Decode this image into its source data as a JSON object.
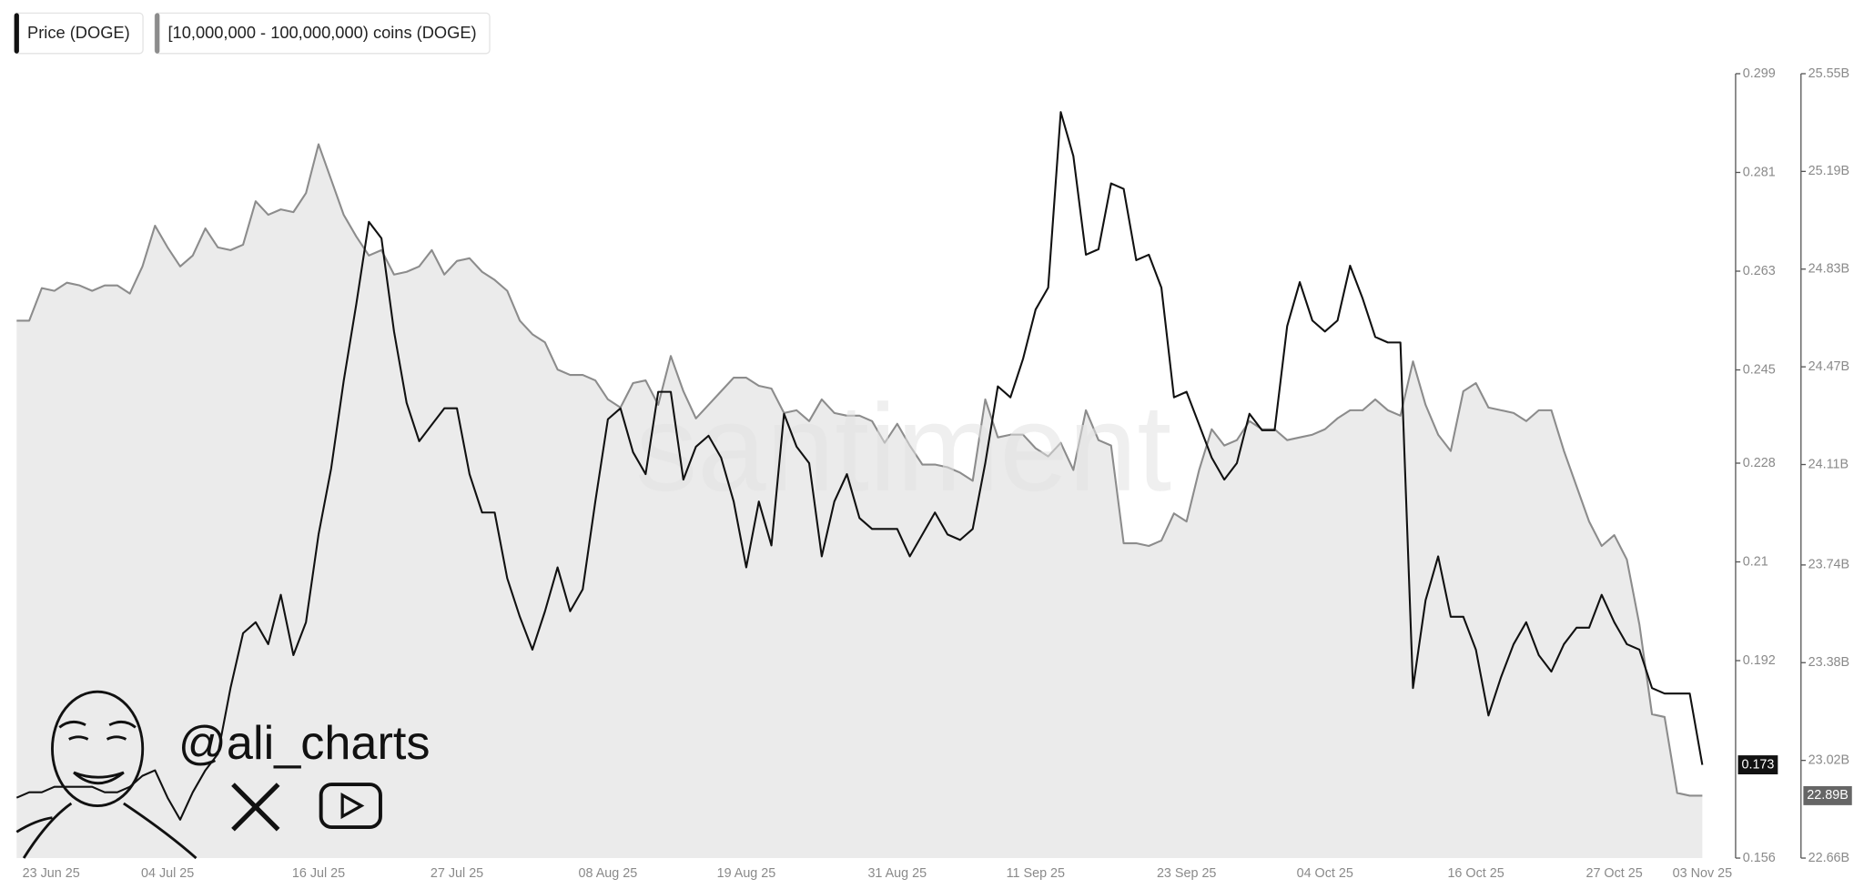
{
  "chart_data": {
    "type": "line",
    "watermark": "santiment",
    "credit": "@ali_charts",
    "categories": [
      null,
      "23 Jun 25",
      null,
      null,
      null,
      null,
      null,
      null,
      null,
      null,
      null,
      null,
      "04 Jul 25",
      null,
      null,
      null,
      null,
      null,
      null,
      null,
      null,
      null,
      null,
      null,
      "16 Jul 25",
      null,
      null,
      null,
      null,
      null,
      null,
      null,
      null,
      null,
      null,
      "27 Jul 25",
      null,
      null,
      null,
      null,
      null,
      null,
      null,
      null,
      null,
      null,
      null,
      "08 Aug 25",
      null,
      null,
      null,
      null,
      null,
      null,
      null,
      null,
      null,
      null,
      "19 Aug 25",
      null,
      null,
      null,
      null,
      null,
      null,
      null,
      null,
      null,
      null,
      null,
      "31 Aug 25",
      null,
      null,
      null,
      null,
      null,
      null,
      null,
      null,
      null,
      null,
      "11 Sep 25",
      null,
      null,
      null,
      null,
      null,
      null,
      null,
      null,
      null,
      null,
      null,
      "23 Sep 25",
      null,
      null,
      null,
      null,
      null,
      null,
      null,
      null,
      null,
      null,
      "04 Oct 25",
      null,
      null,
      null,
      null,
      null,
      null,
      null,
      null,
      null,
      null,
      null,
      "16 Oct 25",
      null,
      null,
      null,
      null,
      null,
      null,
      null,
      null,
      null,
      null,
      "27 Oct 25",
      null,
      null,
      null,
      null,
      null,
      null,
      "03 Nov 25"
    ],
    "series": [
      {
        "name": "Price (DOGE)",
        "color": "#111111",
        "axis": "y",
        "end_label": "0.173",
        "values": [
          0.167,
          0.168,
          0.168,
          0.169,
          0.169,
          0.169,
          0.169,
          0.168,
          0.168,
          0.169,
          0.171,
          0.172,
          0.167,
          0.163,
          0.168,
          0.172,
          0.175,
          0.187,
          0.197,
          0.199,
          0.195,
          0.204,
          0.193,
          0.199,
          0.215,
          0.227,
          0.243,
          0.257,
          0.272,
          0.269,
          0.252,
          0.239,
          0.232,
          0.235,
          0.238,
          0.238,
          0.226,
          0.219,
          0.219,
          0.207,
          0.2,
          0.194,
          0.201,
          0.209,
          0.201,
          0.205,
          0.221,
          0.236,
          0.238,
          0.23,
          0.226,
          0.241,
          0.241,
          0.225,
          0.231,
          0.233,
          0.229,
          0.221,
          0.209,
          0.221,
          0.213,
          0.237,
          0.231,
          0.228,
          0.211,
          0.221,
          0.226,
          0.218,
          0.216,
          0.216,
          0.216,
          0.211,
          0.215,
          0.219,
          0.215,
          0.214,
          0.216,
          0.228,
          0.242,
          0.24,
          0.247,
          0.256,
          0.26,
          0.292,
          0.284,
          0.266,
          0.267,
          0.279,
          0.278,
          0.265,
          0.266,
          0.26,
          0.24,
          0.241,
          0.235,
          0.229,
          0.225,
          0.228,
          0.237,
          0.234,
          0.234,
          0.253,
          0.261,
          0.254,
          0.252,
          0.254,
          0.264,
          0.258,
          0.251,
          0.25,
          0.25,
          0.187,
          0.203,
          0.211,
          0.2,
          0.2,
          0.194,
          0.182,
          0.189,
          0.195,
          0.199,
          0.193,
          0.19,
          0.195,
          0.198,
          0.198,
          0.204,
          0.199,
          0.195,
          0.194,
          0.187,
          0.186,
          0.186,
          0.186,
          0.173
        ]
      },
      {
        "name": "[10,000,000 - 100,000,000) coins (DOGE)",
        "color": "#8c8c8c",
        "fill_color": "#ebebeb",
        "area": true,
        "axis": "y2",
        "end_label": "22.89B",
        "values": [
          24.64,
          24.64,
          24.76,
          24.75,
          24.78,
          24.77,
          24.75,
          24.77,
          24.77,
          24.74,
          24.84,
          24.99,
          24.91,
          24.84,
          24.88,
          24.98,
          24.91,
          24.9,
          24.92,
          25.08,
          25.03,
          25.05,
          25.04,
          25.11,
          25.29,
          25.16,
          25.03,
          24.95,
          24.88,
          24.9,
          24.81,
          24.82,
          24.84,
          24.9,
          24.81,
          24.86,
          24.87,
          24.82,
          24.79,
          24.75,
          24.64,
          24.59,
          24.56,
          24.46,
          24.44,
          24.44,
          24.42,
          24.35,
          24.32,
          24.41,
          24.42,
          24.33,
          24.51,
          24.38,
          24.28,
          24.33,
          24.38,
          24.43,
          24.43,
          24.4,
          24.39,
          24.3,
          24.31,
          24.27,
          24.35,
          24.3,
          24.29,
          24.29,
          24.27,
          24.19,
          24.26,
          24.18,
          24.11,
          24.11,
          24.1,
          24.08,
          24.05,
          24.35,
          24.21,
          24.22,
          24.22,
          24.17,
          24.14,
          24.19,
          24.09,
          24.31,
          24.2,
          24.18,
          23.82,
          23.82,
          23.81,
          23.83,
          23.93,
          23.9,
          24.09,
          24.24,
          24.18,
          24.2,
          24.27,
          24.24,
          24.24,
          24.2,
          24.21,
          24.22,
          24.24,
          24.28,
          24.31,
          24.31,
          24.35,
          24.31,
          24.29,
          24.49,
          24.33,
          24.22,
          24.16,
          24.38,
          24.41,
          24.32,
          24.31,
          24.3,
          24.27,
          24.31,
          24.31,
          24.16,
          24.03,
          23.9,
          23.81,
          23.85,
          23.76,
          23.52,
          23.19,
          23.18,
          22.9,
          22.89,
          22.89
        ]
      }
    ],
    "ylim": [
      0.156,
      0.299
    ],
    "yticks": [
      0.299,
      0.281,
      0.263,
      0.245,
      0.228,
      0.21,
      0.192,
      0.156
    ],
    "y2lim": [
      22.66,
      25.55
    ],
    "y2ticks": [
      {
        "value": 25.55,
        "label": "25.55B"
      },
      {
        "value": 25.19,
        "label": "25.19B"
      },
      {
        "value": 24.83,
        "label": "24.83B"
      },
      {
        "value": 24.47,
        "label": "24.47B"
      },
      {
        "value": 24.11,
        "label": "24.11B"
      },
      {
        "value": 23.74,
        "label": "23.74B"
      },
      {
        "value": 23.38,
        "label": "23.38B"
      },
      {
        "value": 23.02,
        "label": "23.02B"
      },
      {
        "value": 22.66,
        "label": "22.66B"
      }
    ],
    "grid": false
  }
}
